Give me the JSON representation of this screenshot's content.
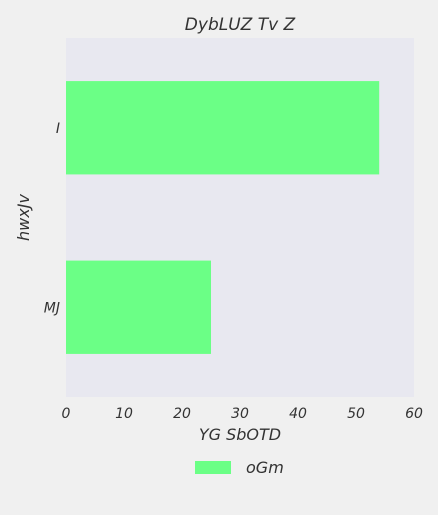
{
  "chart_data": {
    "type": "bar",
    "orientation": "horizontal",
    "title": "DybLUZ  Tv  Z",
    "xlabel": "YG SbOTD",
    "ylabel": "hwxJv",
    "categories": [
      "I",
      "MJ"
    ],
    "series": [
      {
        "name": "oGm",
        "values": [
          54,
          25
        ],
        "color": "#6bff86"
      }
    ],
    "xlim": [
      0,
      60
    ],
    "xticks": [
      0,
      10,
      20,
      30,
      40,
      50,
      60
    ],
    "grid": false,
    "legend_position": "bottom-center",
    "plot_background": "#e8e8f0"
  }
}
